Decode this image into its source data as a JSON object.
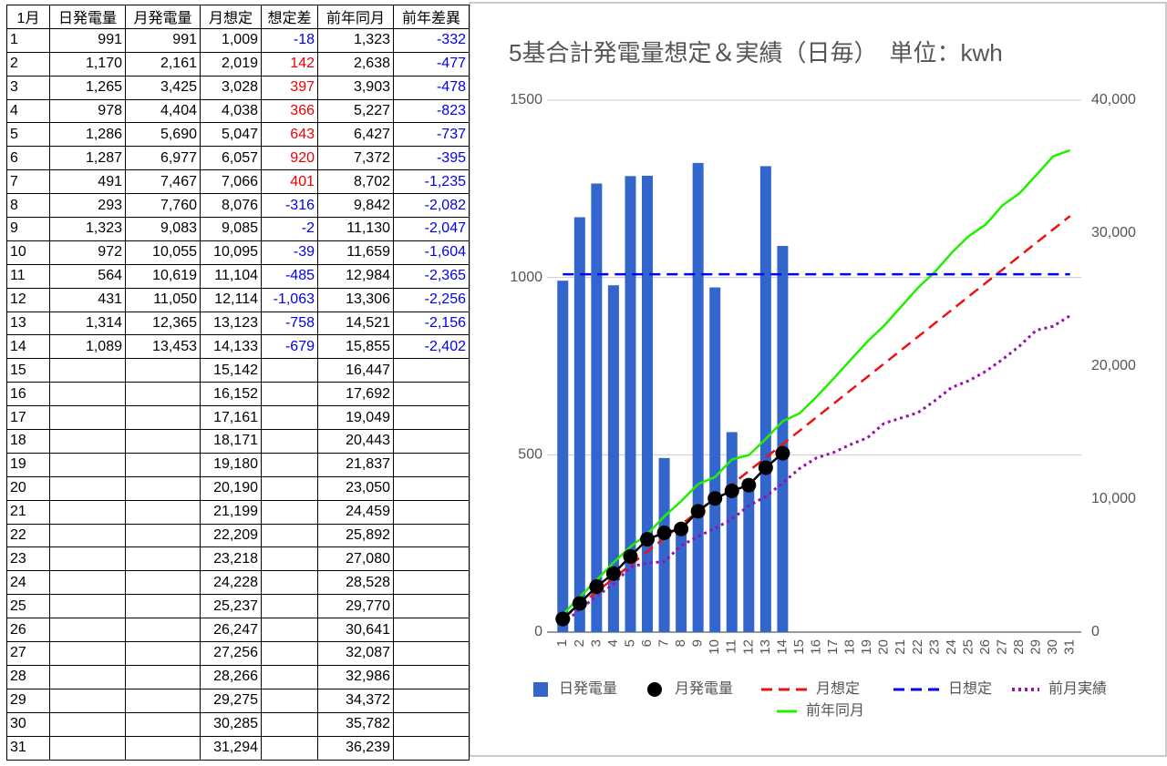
{
  "table": {
    "header": [
      "1月",
      "日発電量",
      "月発電量",
      "月想定",
      "想定差",
      "前年同月",
      "前年差異"
    ],
    "rows": [
      [
        "1",
        "991",
        "991",
        "1,009",
        "-18",
        "1,323",
        "-332"
      ],
      [
        "2",
        "1,170",
        "2,161",
        "2,019",
        "142",
        "2,638",
        "-477"
      ],
      [
        "3",
        "1,265",
        "3,425",
        "3,028",
        "397",
        "3,903",
        "-478"
      ],
      [
        "4",
        "978",
        "4,404",
        "4,038",
        "366",
        "5,227",
        "-823"
      ],
      [
        "5",
        "1,286",
        "5,690",
        "5,047",
        "643",
        "6,427",
        "-737"
      ],
      [
        "6",
        "1,287",
        "6,977",
        "6,057",
        "920",
        "7,372",
        "-395"
      ],
      [
        "7",
        "491",
        "7,467",
        "7,066",
        "401",
        "8,702",
        "-1,235"
      ],
      [
        "8",
        "293",
        "7,760",
        "8,076",
        "-316",
        "9,842",
        "-2,082"
      ],
      [
        "9",
        "1,323",
        "9,083",
        "9,085",
        "-2",
        "11,130",
        "-2,047"
      ],
      [
        "10",
        "972",
        "10,055",
        "10,095",
        "-39",
        "11,659",
        "-1,604"
      ],
      [
        "11",
        "564",
        "10,619",
        "11,104",
        "-485",
        "12,984",
        "-2,365"
      ],
      [
        "12",
        "431",
        "11,050",
        "12,114",
        "-1,063",
        "13,306",
        "-2,256"
      ],
      [
        "13",
        "1,314",
        "12,365",
        "13,123",
        "-758",
        "14,521",
        "-2,156"
      ],
      [
        "14",
        "1,089",
        "13,453",
        "14,133",
        "-679",
        "15,855",
        "-2,402"
      ],
      [
        "15",
        null,
        null,
        "15,142",
        null,
        "16,447",
        null
      ],
      [
        "16",
        null,
        null,
        "16,152",
        null,
        "17,692",
        null
      ],
      [
        "17",
        null,
        null,
        "17,161",
        null,
        "19,049",
        null
      ],
      [
        "18",
        null,
        null,
        "18,171",
        null,
        "20,443",
        null
      ],
      [
        "19",
        null,
        null,
        "19,180",
        null,
        "21,837",
        null
      ],
      [
        "20",
        null,
        null,
        "20,190",
        null,
        "23,050",
        null
      ],
      [
        "21",
        null,
        null,
        "21,199",
        null,
        "24,459",
        null
      ],
      [
        "22",
        null,
        null,
        "22,209",
        null,
        "25,892",
        null
      ],
      [
        "23",
        null,
        null,
        "23,218",
        null,
        "27,080",
        null
      ],
      [
        "24",
        null,
        null,
        "24,228",
        null,
        "28,528",
        null
      ],
      [
        "25",
        null,
        null,
        "25,237",
        null,
        "29,770",
        null
      ],
      [
        "26",
        null,
        null,
        "26,247",
        null,
        "30,641",
        null
      ],
      [
        "27",
        null,
        null,
        "27,256",
        null,
        "32,087",
        null
      ],
      [
        "28",
        null,
        null,
        "28,266",
        null,
        "32,986",
        null
      ],
      [
        "29",
        null,
        null,
        "29,275",
        null,
        "34,372",
        null
      ],
      [
        "30",
        null,
        null,
        "30,285",
        null,
        "35,782",
        null
      ],
      [
        "31",
        null,
        null,
        "31,294",
        null,
        "36,239",
        null
      ]
    ]
  },
  "chart_data": {
    "type": "combo",
    "title": "5基合計発電量想定＆実績（日毎）　単位：kwh",
    "categories": [
      "1",
      "2",
      "3",
      "4",
      "5",
      "6",
      "7",
      "8",
      "9",
      "10",
      "11",
      "12",
      "13",
      "14",
      "15",
      "16",
      "17",
      "18",
      "19",
      "20",
      "21",
      "22",
      "23",
      "24",
      "25",
      "26",
      "27",
      "28",
      "29",
      "30",
      "31"
    ],
    "ylim": [
      0,
      1500
    ],
    "yticks": [
      0,
      500,
      1000,
      1500
    ],
    "y2lim": [
      0,
      40000
    ],
    "y2ticks": [
      0,
      {
        "value": 10000,
        "label": "10,000"
      },
      {
        "value": 20000,
        "label": "20,000"
      },
      {
        "value": 30000,
        "label": "30,000"
      },
      {
        "value": 40000,
        "label": "40,000"
      }
    ],
    "grid": true,
    "series": [
      {
        "name": "日発電量",
        "type": "bar",
        "color": "#3366cc",
        "axis": "y",
        "values": [
          991,
          1170,
          1265,
          978,
          1286,
          1287,
          491,
          293,
          1323,
          972,
          564,
          431,
          1314,
          1089,
          null,
          null,
          null,
          null,
          null,
          null,
          null,
          null,
          null,
          null,
          null,
          null,
          null,
          null,
          null,
          null,
          null
        ]
      },
      {
        "name": "月発電量",
        "type": "line",
        "marker": "circle",
        "line_style": "solid",
        "color": "#000000",
        "axis": "y2",
        "values": [
          991,
          2161,
          3425,
          4404,
          5690,
          6977,
          7467,
          7760,
          9083,
          10055,
          10619,
          11050,
          12365,
          13453,
          null,
          null,
          null,
          null,
          null,
          null,
          null,
          null,
          null,
          null,
          null,
          null,
          null,
          null,
          null,
          null,
          null
        ]
      },
      {
        "name": "月想定",
        "type": "line",
        "line_style": "dashed",
        "color": "#ee1111",
        "axis": "y2",
        "values": [
          1009,
          2019,
          3028,
          4038,
          5047,
          6057,
          7066,
          8076,
          9085,
          10095,
          11104,
          12114,
          13123,
          14133,
          15142,
          16152,
          17161,
          18171,
          19180,
          20190,
          21199,
          22209,
          23218,
          24228,
          25237,
          26247,
          27256,
          28266,
          29275,
          30285,
          31294
        ]
      },
      {
        "name": "日想定",
        "type": "line",
        "line_style": "dashed",
        "color": "#0000ee",
        "axis": "y",
        "values": [
          1009,
          1009,
          1009,
          1009,
          1009,
          1009,
          1009,
          1009,
          1009,
          1009,
          1009,
          1009,
          1009,
          1009,
          1009,
          1009,
          1009,
          1009,
          1009,
          1009,
          1009,
          1009,
          1009,
          1009,
          1009,
          1009,
          1009,
          1009,
          1009,
          1009,
          1009
        ]
      },
      {
        "name": "前月実績",
        "type": "line",
        "line_style": "dotted",
        "color": "#9911aa",
        "axis": "y2",
        "values": [
          600,
          1700,
          2700,
          3600,
          4900,
          5200,
          5300,
          6500,
          7200,
          7800,
          8500,
          9500,
          10200,
          11200,
          12300,
          13100,
          13500,
          14100,
          14600,
          15700,
          16100,
          16500,
          17400,
          18400,
          18900,
          19600,
          20500,
          21500,
          22700,
          23000,
          23800
        ]
      },
      {
        "name": "前年同月",
        "type": "line",
        "line_style": "solid",
        "color": "#22ee00",
        "axis": "y2",
        "values": [
          1323,
          2638,
          3903,
          5227,
          6427,
          7372,
          8702,
          9842,
          11130,
          11659,
          12984,
          13306,
          14521,
          15855,
          16447,
          17692,
          19049,
          20443,
          21837,
          23050,
          24459,
          25892,
          27080,
          28528,
          29770,
          30641,
          32087,
          32986,
          34372,
          35782,
          36239
        ]
      }
    ]
  }
}
